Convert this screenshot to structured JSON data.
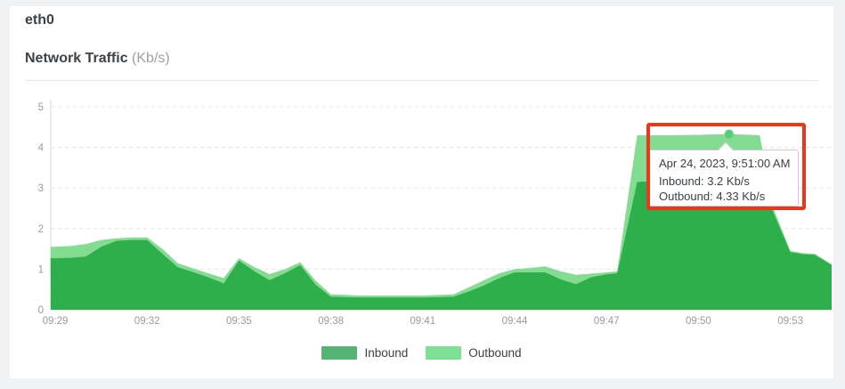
{
  "header": {
    "title": "eth0",
    "subtitle": "Network Traffic",
    "unit": "(Kb/s)"
  },
  "chart_data": {
    "type": "area",
    "title": "Network Traffic (Kb/s)",
    "xlabel": "",
    "ylabel": "",
    "ylim": [
      0,
      5
    ],
    "grid": "dashed-horizontal",
    "legend_position": "bottom-center",
    "y_ticks": [
      {
        "label": "0",
        "value": 0
      },
      {
        "label": "1",
        "value": 1
      },
      {
        "label": "2",
        "value": 2
      },
      {
        "label": "3",
        "value": 3
      },
      {
        "label": "4",
        "value": 4
      },
      {
        "label": "5",
        "value": 5
      }
    ],
    "x_ticks": [
      {
        "label": "09:29",
        "t": 0
      },
      {
        "label": "09:32",
        "t": 3
      },
      {
        "label": "09:35",
        "t": 6
      },
      {
        "label": "09:38",
        "t": 9
      },
      {
        "label": "09:41",
        "t": 12
      },
      {
        "label": "09:44",
        "t": 15
      },
      {
        "label": "09:47",
        "t": 18
      },
      {
        "label": "09:50",
        "t": 21
      },
      {
        "label": "09:53",
        "t": 24
      }
    ],
    "series": [
      {
        "name": "Outbound",
        "color": "#83dc92",
        "points": [
          [
            -0.15,
            1.55
          ],
          [
            0,
            1.55
          ],
          [
            0.5,
            1.57
          ],
          [
            1,
            1.62
          ],
          [
            1.5,
            1.72
          ],
          [
            2,
            1.76
          ],
          [
            2.5,
            1.78
          ],
          [
            3,
            1.78
          ],
          [
            3.5,
            1.5
          ],
          [
            4,
            1.15
          ],
          [
            4.5,
            1.02
          ],
          [
            5,
            0.9
          ],
          [
            5.5,
            0.78
          ],
          [
            6,
            1.27
          ],
          [
            6.5,
            1.05
          ],
          [
            7,
            0.88
          ],
          [
            7.5,
            1.0
          ],
          [
            8,
            1.17
          ],
          [
            8.5,
            0.72
          ],
          [
            9,
            0.38
          ],
          [
            10,
            0.35
          ],
          [
            11,
            0.35
          ],
          [
            12,
            0.35
          ],
          [
            13,
            0.38
          ],
          [
            13.5,
            0.55
          ],
          [
            14,
            0.73
          ],
          [
            14.5,
            0.9
          ],
          [
            15,
            1.0
          ],
          [
            15.5,
            1.03
          ],
          [
            16,
            1.07
          ],
          [
            16.5,
            0.95
          ],
          [
            17,
            0.86
          ],
          [
            17.5,
            0.89
          ],
          [
            18,
            0.92
          ],
          [
            18.35,
            0.95
          ],
          [
            19,
            4.3
          ],
          [
            20,
            4.3
          ],
          [
            21,
            4.31
          ],
          [
            22,
            4.33
          ],
          [
            23,
            4.3
          ],
          [
            23.5,
            2.4
          ],
          [
            24,
            1.45
          ],
          [
            24.4,
            1.4
          ],
          [
            24.8,
            1.38
          ],
          [
            25.35,
            1.12
          ]
        ]
      },
      {
        "name": "Inbound",
        "color": "#2fae4c",
        "points": [
          [
            -0.15,
            1.27
          ],
          [
            0,
            1.27
          ],
          [
            0.5,
            1.28
          ],
          [
            1,
            1.31
          ],
          [
            1.5,
            1.55
          ],
          [
            2,
            1.7
          ],
          [
            2.5,
            1.72
          ],
          [
            3,
            1.72
          ],
          [
            3.5,
            1.38
          ],
          [
            4,
            1.05
          ],
          [
            4.5,
            0.93
          ],
          [
            5,
            0.8
          ],
          [
            5.5,
            0.65
          ],
          [
            6,
            1.21
          ],
          [
            6.5,
            0.95
          ],
          [
            7,
            0.73
          ],
          [
            7.5,
            0.9
          ],
          [
            8,
            1.1
          ],
          [
            8.5,
            0.62
          ],
          [
            9,
            0.32
          ],
          [
            10,
            0.3
          ],
          [
            11,
            0.3
          ],
          [
            12,
            0.3
          ],
          [
            13,
            0.32
          ],
          [
            13.5,
            0.45
          ],
          [
            14,
            0.6
          ],
          [
            14.5,
            0.78
          ],
          [
            15,
            0.92
          ],
          [
            15.5,
            0.92
          ],
          [
            16,
            0.92
          ],
          [
            16.5,
            0.75
          ],
          [
            17,
            0.63
          ],
          [
            17.5,
            0.8
          ],
          [
            18,
            0.87
          ],
          [
            18.35,
            0.9
          ],
          [
            19,
            3.15
          ],
          [
            20,
            3.18
          ],
          [
            21,
            3.2
          ],
          [
            22,
            3.2
          ],
          [
            23,
            3.17
          ],
          [
            23.5,
            2.3
          ],
          [
            24,
            1.42
          ],
          [
            24.4,
            1.37
          ],
          [
            24.8,
            1.35
          ],
          [
            25.35,
            1.1
          ]
        ]
      }
    ],
    "legend": [
      {
        "label": "Inbound",
        "color": "#55b474"
      },
      {
        "label": "Outbound",
        "color": "#7ee094"
      }
    ],
    "tooltip": {
      "date": "Apr 24, 2023, 9:51:00 AM",
      "inbound": "Inbound: 3.2 Kb/s",
      "outbound": "Outbound: 4.33 Kb/s",
      "hover_t": 22,
      "hover_value": 4.33
    },
    "colors": {
      "grid": "#e2e3e5",
      "axis": "#d6d8da",
      "tick": "#949ca4",
      "dot": "#5bcd78",
      "annotation": "#e8391d",
      "inbound_fill": "#2fae4c",
      "outbound_fill": "#83dc92"
    }
  }
}
